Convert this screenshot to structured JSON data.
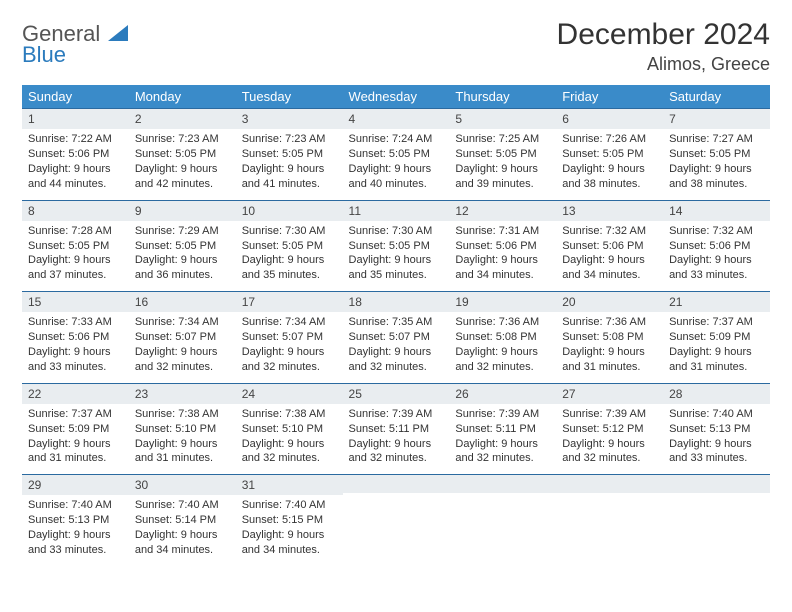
{
  "logo": {
    "line1": "General",
    "line2": "Blue"
  },
  "title": "December 2024",
  "location": "Alimos, Greece",
  "headers": [
    "Sunday",
    "Monday",
    "Tuesday",
    "Wednesday",
    "Thursday",
    "Friday",
    "Saturday"
  ],
  "header_bg": "#3a8bc9",
  "header_fg": "#ffffff",
  "daynum_bg": "#e9edf0",
  "border_color": "#2b6aa0",
  "days": [
    {
      "n": 1,
      "sr": "7:22 AM",
      "ss": "5:06 PM",
      "dl": "9 hours and 44 minutes."
    },
    {
      "n": 2,
      "sr": "7:23 AM",
      "ss": "5:05 PM",
      "dl": "9 hours and 42 minutes."
    },
    {
      "n": 3,
      "sr": "7:23 AM",
      "ss": "5:05 PM",
      "dl": "9 hours and 41 minutes."
    },
    {
      "n": 4,
      "sr": "7:24 AM",
      "ss": "5:05 PM",
      "dl": "9 hours and 40 minutes."
    },
    {
      "n": 5,
      "sr": "7:25 AM",
      "ss": "5:05 PM",
      "dl": "9 hours and 39 minutes."
    },
    {
      "n": 6,
      "sr": "7:26 AM",
      "ss": "5:05 PM",
      "dl": "9 hours and 38 minutes."
    },
    {
      "n": 7,
      "sr": "7:27 AM",
      "ss": "5:05 PM",
      "dl": "9 hours and 38 minutes."
    },
    {
      "n": 8,
      "sr": "7:28 AM",
      "ss": "5:05 PM",
      "dl": "9 hours and 37 minutes."
    },
    {
      "n": 9,
      "sr": "7:29 AM",
      "ss": "5:05 PM",
      "dl": "9 hours and 36 minutes."
    },
    {
      "n": 10,
      "sr": "7:30 AM",
      "ss": "5:05 PM",
      "dl": "9 hours and 35 minutes."
    },
    {
      "n": 11,
      "sr": "7:30 AM",
      "ss": "5:05 PM",
      "dl": "9 hours and 35 minutes."
    },
    {
      "n": 12,
      "sr": "7:31 AM",
      "ss": "5:06 PM",
      "dl": "9 hours and 34 minutes."
    },
    {
      "n": 13,
      "sr": "7:32 AM",
      "ss": "5:06 PM",
      "dl": "9 hours and 34 minutes."
    },
    {
      "n": 14,
      "sr": "7:32 AM",
      "ss": "5:06 PM",
      "dl": "9 hours and 33 minutes."
    },
    {
      "n": 15,
      "sr": "7:33 AM",
      "ss": "5:06 PM",
      "dl": "9 hours and 33 minutes."
    },
    {
      "n": 16,
      "sr": "7:34 AM",
      "ss": "5:07 PM",
      "dl": "9 hours and 32 minutes."
    },
    {
      "n": 17,
      "sr": "7:34 AM",
      "ss": "5:07 PM",
      "dl": "9 hours and 32 minutes."
    },
    {
      "n": 18,
      "sr": "7:35 AM",
      "ss": "5:07 PM",
      "dl": "9 hours and 32 minutes."
    },
    {
      "n": 19,
      "sr": "7:36 AM",
      "ss": "5:08 PM",
      "dl": "9 hours and 32 minutes."
    },
    {
      "n": 20,
      "sr": "7:36 AM",
      "ss": "5:08 PM",
      "dl": "9 hours and 31 minutes."
    },
    {
      "n": 21,
      "sr": "7:37 AM",
      "ss": "5:09 PM",
      "dl": "9 hours and 31 minutes."
    },
    {
      "n": 22,
      "sr": "7:37 AM",
      "ss": "5:09 PM",
      "dl": "9 hours and 31 minutes."
    },
    {
      "n": 23,
      "sr": "7:38 AM",
      "ss": "5:10 PM",
      "dl": "9 hours and 31 minutes."
    },
    {
      "n": 24,
      "sr": "7:38 AM",
      "ss": "5:10 PM",
      "dl": "9 hours and 32 minutes."
    },
    {
      "n": 25,
      "sr": "7:39 AM",
      "ss": "5:11 PM",
      "dl": "9 hours and 32 minutes."
    },
    {
      "n": 26,
      "sr": "7:39 AM",
      "ss": "5:11 PM",
      "dl": "9 hours and 32 minutes."
    },
    {
      "n": 27,
      "sr": "7:39 AM",
      "ss": "5:12 PM",
      "dl": "9 hours and 32 minutes."
    },
    {
      "n": 28,
      "sr": "7:40 AM",
      "ss": "5:13 PM",
      "dl": "9 hours and 33 minutes."
    },
    {
      "n": 29,
      "sr": "7:40 AM",
      "ss": "5:13 PM",
      "dl": "9 hours and 33 minutes."
    },
    {
      "n": 30,
      "sr": "7:40 AM",
      "ss": "5:14 PM",
      "dl": "9 hours and 34 minutes."
    },
    {
      "n": 31,
      "sr": "7:40 AM",
      "ss": "5:15 PM",
      "dl": "9 hours and 34 minutes."
    }
  ],
  "labels": {
    "sunrise": "Sunrise:",
    "sunset": "Sunset:",
    "daylight": "Daylight:"
  },
  "trailing_empty": 4
}
